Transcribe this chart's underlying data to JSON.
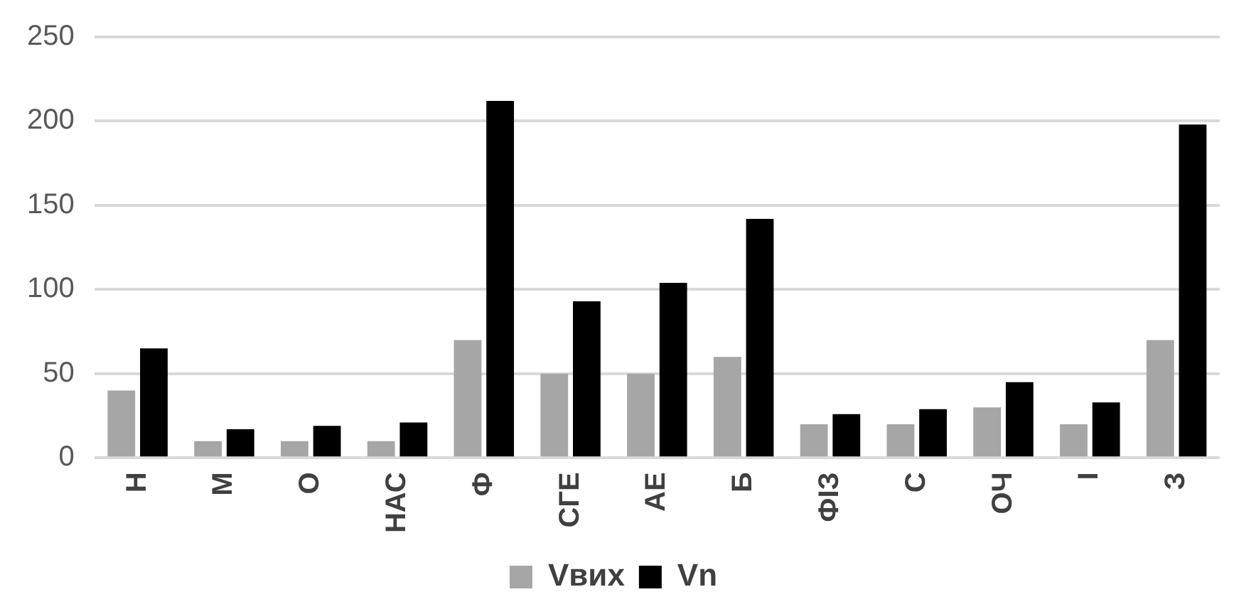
{
  "chart_data": {
    "type": "bar",
    "categories": [
      "Н",
      "М",
      "О",
      "НАС",
      "Ф",
      "СГЕ",
      "АЕ",
      "Б",
      "ФІЗ",
      "С",
      "ОЧ",
      "І",
      "З"
    ],
    "series": [
      {
        "name": "Vвих",
        "color": "#a6a6a6",
        "values": [
          40,
          10,
          10,
          10,
          70,
          50,
          50,
          60,
          20,
          20,
          30,
          20,
          70
        ]
      },
      {
        "name": "Vn",
        "color": "#000000",
        "values": [
          65,
          17,
          19,
          21,
          212,
          93,
          104,
          142,
          26,
          29,
          45,
          33,
          198
        ]
      }
    ],
    "ylim": [
      0,
      250
    ],
    "yticks": [
      0,
      50,
      100,
      150,
      200,
      250
    ],
    "grid": "y",
    "legend": "bottom"
  }
}
